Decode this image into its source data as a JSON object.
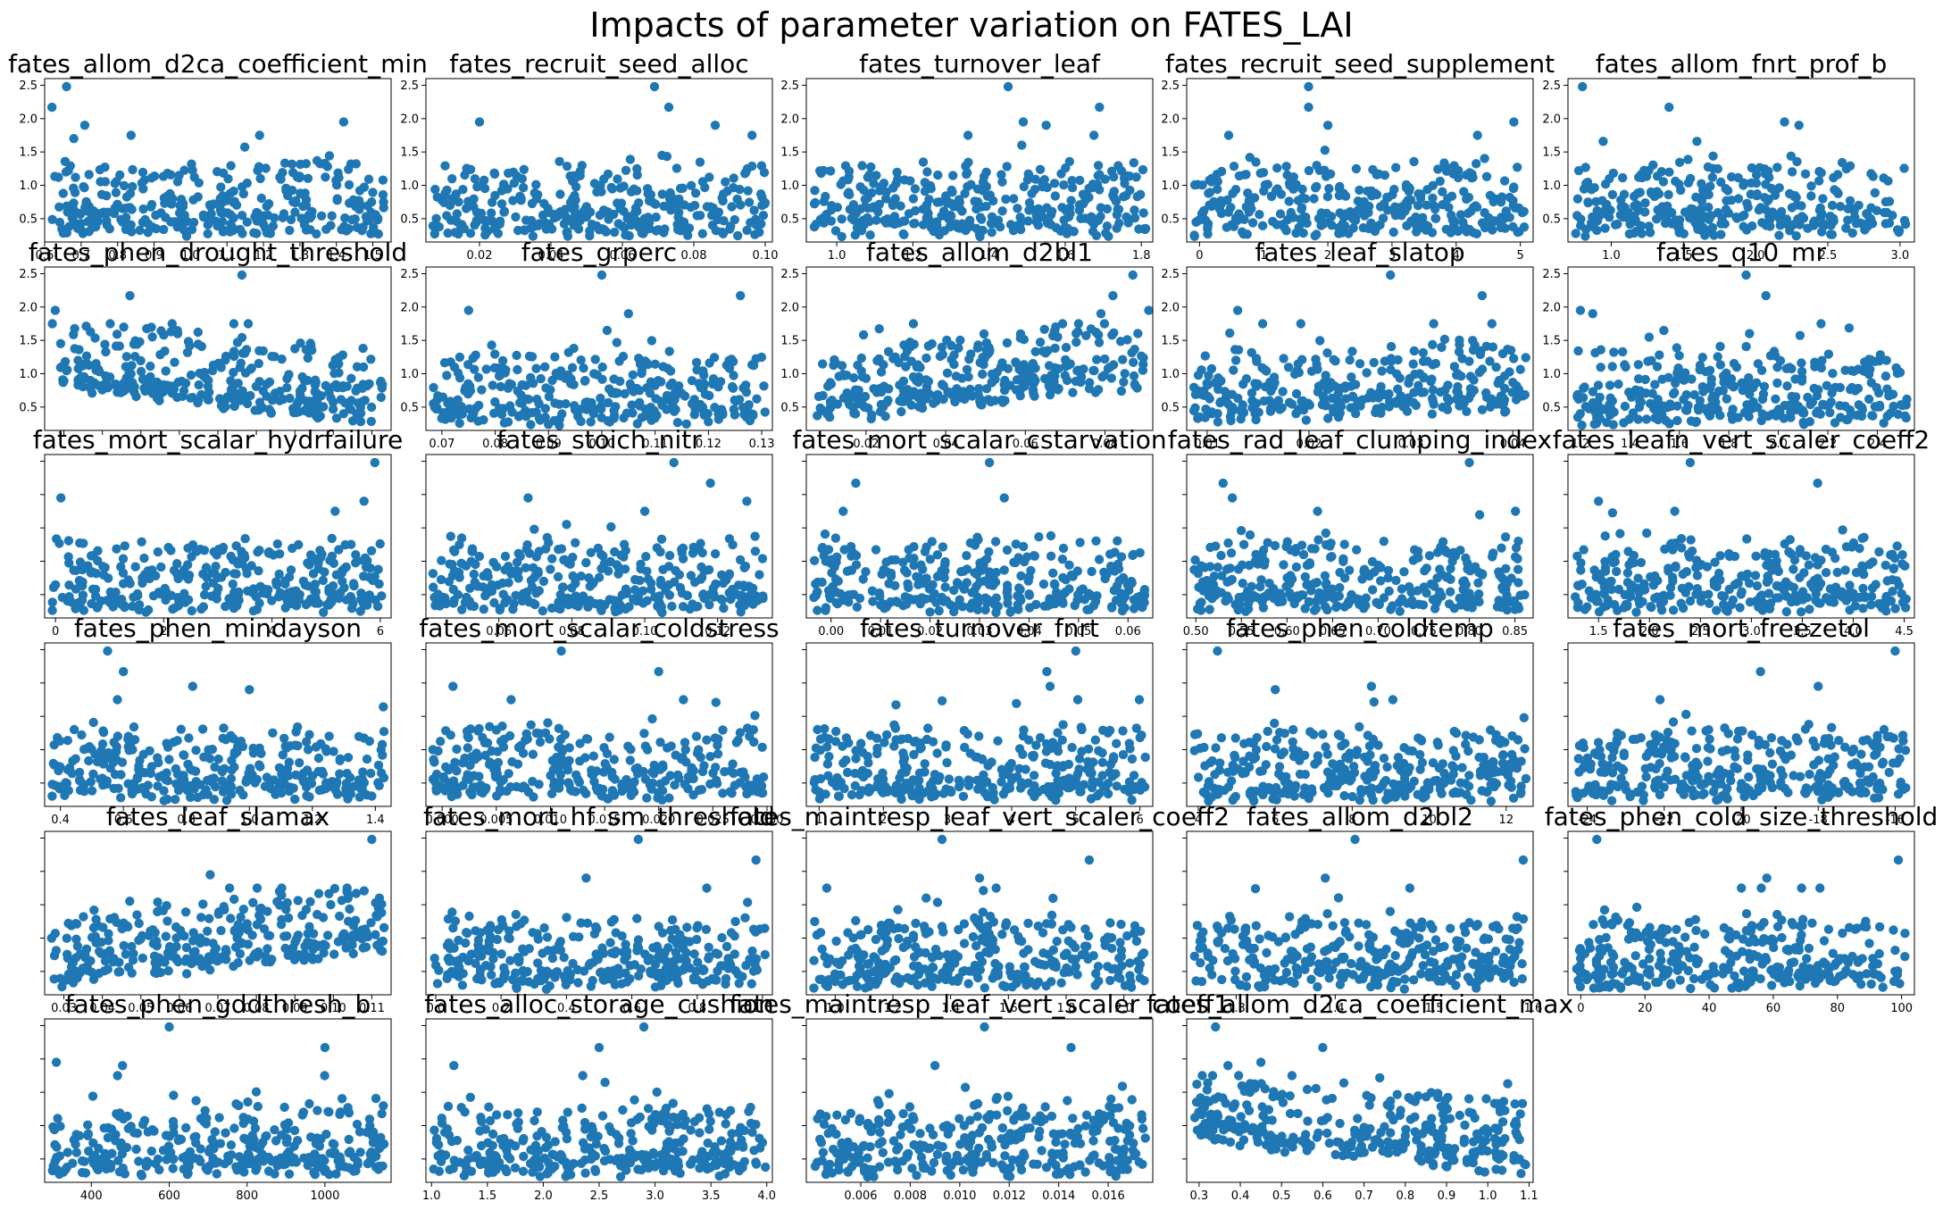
{
  "title": "Impacts of parameter variation on FATES_LAI",
  "marker_color": "#1f77b4",
  "chart_data": [
    {
      "type": "scatter",
      "title": "fates_allom_d2ca_coefficient_min",
      "xlim": [
        0.6,
        1.55
      ],
      "xticks": [
        "0.6",
        "0.7",
        "0.8",
        "0.9",
        "1.0",
        "1.1",
        "1.2",
        "1.3",
        "1.4",
        "1.5"
      ],
      "ylim": [
        0.15,
        2.6
      ],
      "yticks": [
        "0.5",
        "1.0",
        "1.5",
        "2.0",
        "2.5"
      ],
      "trend": "none",
      "highlights": [
        [
          0.62,
          2.17
        ],
        [
          0.66,
          2.48
        ],
        [
          0.68,
          1.7
        ],
        [
          0.71,
          1.9
        ],
        [
          1.42,
          1.95
        ]
      ]
    },
    {
      "type": "scatter",
      "title": "fates_recruit_seed_alloc",
      "xlim": [
        0.005,
        0.102
      ],
      "xticks": [
        "0.02",
        "0.04",
        "0.06",
        "0.08",
        "0.10"
      ],
      "ylim": [
        0.15,
        2.6
      ],
      "yticks": [
        "0.5",
        "1.0",
        "1.5",
        "2.0",
        "2.5"
      ],
      "trend": "none",
      "highlights": [
        [
          0.02,
          1.95
        ],
        [
          0.069,
          2.48
        ],
        [
          0.073,
          2.17
        ],
        [
          0.086,
          1.9
        ]
      ]
    },
    {
      "type": "scatter",
      "title": "fates_turnover_leaf",
      "xlim": [
        0.92,
        1.83
      ],
      "xticks": [
        "1.0",
        "1.2",
        "1.4",
        "1.6",
        "1.8"
      ],
      "ylim": [
        0.15,
        2.6
      ],
      "yticks": [
        "0.5",
        "1.0",
        "1.5",
        "2.0",
        "2.5"
      ],
      "trend": "none",
      "highlights": [
        [
          1.45,
          2.48
        ],
        [
          1.49,
          1.95
        ],
        [
          1.55,
          1.9
        ],
        [
          1.69,
          2.17
        ]
      ]
    },
    {
      "type": "scatter",
      "title": "fates_recruit_seed_supplement",
      "xlim": [
        -0.2,
        5.2
      ],
      "xticks": [
        "0",
        "1",
        "2",
        "3",
        "4",
        "5"
      ],
      "ylim": [
        0.15,
        2.6
      ],
      "yticks": [
        "0.5",
        "1.0",
        "1.5",
        "2.0",
        "2.5"
      ],
      "trend": "none",
      "highlights": [
        [
          1.7,
          2.48
        ],
        [
          1.7,
          2.17
        ],
        [
          4.9,
          1.95
        ],
        [
          2.0,
          1.9
        ]
      ]
    },
    {
      "type": "scatter",
      "title": "fates_allom_fnrt_prof_b",
      "xlim": [
        0.7,
        3.1
      ],
      "xticks": [
        "1.0",
        "1.5",
        "2.0",
        "2.5",
        "3.0"
      ],
      "ylim": [
        0.15,
        2.6
      ],
      "yticks": [
        "0.5",
        "1.0",
        "1.5",
        "2.0",
        "2.5"
      ],
      "trend": "none",
      "highlights": [
        [
          0.8,
          2.48
        ],
        [
          1.4,
          2.17
        ],
        [
          2.2,
          1.95
        ],
        [
          2.3,
          1.9
        ]
      ]
    },
    {
      "type": "scatter",
      "title": "fates_phen_drought_threshold",
      "xlim": [
        -3.7e-05,
        2.8e-05
      ],
      "xticks": [
        "",
        "",
        "",
        "",
        "",
        "",
        "",
        "",
        ""
      ],
      "ylim": [
        0.15,
        2.6
      ],
      "yticks": [
        "0.5",
        "1.0",
        "1.5",
        "2.0",
        "2.5"
      ],
      "trend": "down",
      "highlights": [
        [
          -3.5e-05,
          1.95
        ],
        [
          -2.1e-05,
          2.17
        ],
        [
          0.0,
          2.48
        ]
      ]
    },
    {
      "type": "scatter",
      "title": "fates_grperc",
      "xlim": [
        0.067,
        0.132
      ],
      "xticks": [
        "0.07",
        "0.08",
        "0.09",
        "0.10",
        "0.11",
        "0.12",
        "0.13"
      ],
      "ylim": [
        0.15,
        2.6
      ],
      "yticks": [
        "0.5",
        "1.0",
        "1.5",
        "2.0",
        "2.5"
      ],
      "trend": "none",
      "highlights": [
        [
          0.075,
          1.95
        ],
        [
          0.1,
          2.48
        ],
        [
          0.105,
          1.9
        ],
        [
          0.126,
          2.17
        ]
      ]
    },
    {
      "type": "scatter",
      "title": "fates_allom_d2bl1",
      "xlim": [
        0.005,
        0.092
      ],
      "xticks": [
        "0.02",
        "0.04",
        "0.06",
        "0.08"
      ],
      "ylim": [
        0.15,
        2.6
      ],
      "yticks": [
        "0.5",
        "1.0",
        "1.5",
        "2.0",
        "2.5"
      ],
      "trend": "up",
      "highlights": [
        [
          0.082,
          2.17
        ],
        [
          0.087,
          2.48
        ],
        [
          0.091,
          1.95
        ],
        [
          0.079,
          1.9
        ]
      ]
    },
    {
      "type": "scatter",
      "title": "fates_leaf_slatop",
      "xlim": [
        0.008,
        0.042
      ],
      "xticks": [
        "0.01",
        "0.02",
        "0.03",
        "0.04"
      ],
      "ylim": [
        0.15,
        2.6
      ],
      "yticks": [
        "0.5",
        "1.0",
        "1.5",
        "2.0",
        "2.5"
      ],
      "trend": "slight-up",
      "highlights": [
        [
          0.013,
          1.95
        ],
        [
          0.028,
          2.48
        ],
        [
          0.037,
          2.17
        ]
      ]
    },
    {
      "type": "scatter",
      "title": "fates_q10_mr",
      "xlim": [
        1.15,
        2.55
      ],
      "xticks": [
        "1.2",
        "1.4",
        "1.6",
        "1.8",
        "2.0",
        "2.2",
        "2.4"
      ],
      "ylim": [
        0.15,
        2.6
      ],
      "yticks": [
        "0.5",
        "1.0",
        "1.5",
        "2.0",
        "2.5"
      ],
      "trend": "none",
      "highlights": [
        [
          1.2,
          1.95
        ],
        [
          1.87,
          2.48
        ],
        [
          1.95,
          2.17
        ],
        [
          1.25,
          1.9
        ]
      ]
    },
    {
      "type": "scatter",
      "title": "fates_mort_scalar_hydrfailure",
      "xlim": [
        -0.2,
        6.2
      ],
      "xticks": [
        "0",
        "2",
        "4",
        "6"
      ],
      "ylim": [
        0.15,
        2.6
      ],
      "yticks": [],
      "trend": "none",
      "highlights": [
        [
          0.1,
          1.95
        ],
        [
          5.9,
          2.48
        ],
        [
          5.7,
          1.9
        ]
      ]
    },
    {
      "type": "scatter",
      "title": "fates_stoich_nitr",
      "xlim": [
        0.04,
        0.135
      ],
      "xticks": [
        "0.06",
        "0.08",
        "0.10",
        "0.12"
      ],
      "ylim": [
        0.15,
        2.6
      ],
      "yticks": [],
      "trend": "none",
      "highlights": [
        [
          0.108,
          2.48
        ],
        [
          0.118,
          2.17
        ],
        [
          0.128,
          1.9
        ],
        [
          0.068,
          1.95
        ]
      ]
    },
    {
      "type": "scatter",
      "title": "fates_mort_scalar_cstarvation",
      "xlim": [
        -0.005,
        0.065
      ],
      "xticks": [
        "0.00",
        "0.01",
        "0.02",
        "0.03",
        "0.04",
        "0.05",
        "0.06"
      ],
      "ylim": [
        0.15,
        2.6
      ],
      "yticks": [],
      "trend": "none",
      "highlights": [
        [
          0.032,
          2.48
        ],
        [
          0.005,
          2.17
        ],
        [
          0.035,
          1.95
        ]
      ]
    },
    {
      "type": "scatter",
      "title": "fates_rad_leaf_clumping_index",
      "xlim": [
        0.49,
        0.87
      ],
      "xticks": [
        "0.50",
        "0.55",
        "0.60",
        "0.65",
        "0.70",
        "0.75",
        "0.80",
        "0.85"
      ],
      "ylim": [
        0.15,
        2.6
      ],
      "yticks": [],
      "trend": "none",
      "highlights": [
        [
          0.53,
          2.17
        ],
        [
          0.8,
          2.48
        ],
        [
          0.54,
          1.95
        ]
      ]
    },
    {
      "type": "scatter",
      "title": "fates_leafn_vert_scaler_coeff2",
      "xlim": [
        1.2,
        4.6
      ],
      "xticks": [
        "1.5",
        "2.0",
        "2.5",
        "3.0",
        "3.5",
        "4.0",
        "4.5"
      ],
      "ylim": [
        0.15,
        2.6
      ],
      "yticks": [],
      "trend": "none",
      "highlights": [
        [
          2.4,
          2.48
        ],
        [
          3.65,
          2.17
        ],
        [
          1.5,
          1.9
        ]
      ]
    },
    {
      "type": "scatter",
      "title": "fates_phen_mindayson",
      "xlim": [
        0.35,
        1.45
      ],
      "xticks": [
        "0.4",
        "0.6",
        "0.8",
        "1.0",
        "1.2",
        "1.4"
      ],
      "ylim": [
        0.15,
        2.6
      ],
      "yticks": [],
      "trend": "none",
      "highlights": [
        [
          0.55,
          2.48
        ],
        [
          0.6,
          2.17
        ],
        [
          1.0,
          1.9
        ],
        [
          0.82,
          1.95
        ]
      ]
    },
    {
      "type": "scatter",
      "title": "fates_mort_scalar_coldstress",
      "xlim": [
        -0.0015,
        0.0305
      ],
      "xticks": [
        "0.000",
        "0.005",
        "0.010",
        "0.015",
        "0.020",
        "0.025",
        "0.030"
      ],
      "ylim": [
        0.15,
        2.6
      ],
      "yticks": [],
      "trend": "none",
      "highlights": [
        [
          0.001,
          1.95
        ],
        [
          0.011,
          2.48
        ],
        [
          0.02,
          2.17
        ]
      ]
    },
    {
      "type": "scatter",
      "title": "fates_turnover_fnrt",
      "xlim": [
        0.8,
        6.2
      ],
      "xticks": [
        "1",
        "2",
        "3",
        "4",
        "5",
        "6"
      ],
      "ylim": [
        0.15,
        2.6
      ],
      "yticks": [],
      "trend": "none",
      "highlights": [
        [
          4.55,
          2.17
        ],
        [
          5.0,
          2.48
        ],
        [
          4.6,
          1.95
        ]
      ]
    },
    {
      "type": "scatter",
      "title": "fates_phen_coldtemp",
      "xlim": [
        3.7,
        12.7
      ],
      "xticks": [
        "4",
        "6",
        "8",
        "10",
        "12"
      ],
      "ylim": [
        0.15,
        2.6
      ],
      "yticks": [],
      "trend": "none",
      "highlights": [
        [
          4.5,
          2.48
        ],
        [
          8.5,
          1.95
        ],
        [
          6.0,
          1.9
        ]
      ]
    },
    {
      "type": "scatter",
      "title": "fates_mort_freezetol",
      "xlim": [
        -24.5,
        -15.5
      ],
      "xticks": [
        "-24",
        "-22",
        "-20",
        "-18",
        "-16"
      ],
      "ylim": [
        0.15,
        2.6
      ],
      "yticks": [],
      "trend": "none",
      "highlights": [
        [
          -16.0,
          2.48
        ],
        [
          -19.5,
          2.17
        ],
        [
          -18.0,
          1.95
        ]
      ]
    },
    {
      "type": "scatter",
      "title": "fates_leaf_slamax",
      "xlim": [
        0.025,
        0.115
      ],
      "xticks": [
        "0.03",
        "0.04",
        "0.05",
        "0.06",
        "0.07",
        "0.08",
        "0.09",
        "0.10",
        "0.11"
      ],
      "ylim": [
        0.15,
        2.6
      ],
      "yticks": [],
      "trend": "up",
      "highlights": [
        [
          0.068,
          1.95
        ],
        [
          0.11,
          2.48
        ],
        [
          0.086,
          1.7
        ]
      ]
    },
    {
      "type": "scatter",
      "title": "fates_mort_hf_sm_threshold",
      "xlim": [
        -0.03,
        1.03
      ],
      "xticks": [
        "0.0",
        "0.2",
        "0.4",
        "0.6",
        "0.8",
        "1.0"
      ],
      "ylim": [
        0.15,
        2.6
      ],
      "yticks": [],
      "trend": "none",
      "highlights": [
        [
          0.62,
          2.48
        ],
        [
          0.98,
          2.17
        ],
        [
          0.46,
          1.9
        ]
      ]
    },
    {
      "type": "scatter",
      "title": "fates_maintresp_leaf_vert_scaler_coeff2",
      "xlim": [
        0.9,
        2.1
      ],
      "xticks": [
        "1.0",
        "1.2",
        "1.4",
        "1.6",
        "1.8",
        "2.0"
      ],
      "ylim": [
        0.15,
        2.6
      ],
      "yticks": [],
      "trend": "none",
      "highlights": [
        [
          1.37,
          2.48
        ],
        [
          1.88,
          2.17
        ],
        [
          1.5,
          1.9
        ]
      ]
    },
    {
      "type": "scatter",
      "title": "fates_allom_d2bl2",
      "xlim": [
        1.25,
        1.6
      ],
      "xticks": [
        "1.3",
        "1.4",
        "1.5",
        "1.6"
      ],
      "ylim": [
        0.15,
        2.6
      ],
      "yticks": [],
      "trend": "none",
      "highlights": [
        [
          1.42,
          2.48
        ],
        [
          1.59,
          2.17
        ],
        [
          1.39,
          1.9
        ]
      ]
    },
    {
      "type": "scatter",
      "title": "fates_phen_cold_size_threshold",
      "xlim": [
        -4,
        104
      ],
      "xticks": [
        "0",
        "20",
        "40",
        "60",
        "80",
        "100"
      ],
      "ylim": [
        0.15,
        2.6
      ],
      "yticks": [],
      "trend": "none",
      "highlights": [
        [
          5,
          2.48
        ],
        [
          99,
          2.17
        ],
        [
          58,
          1.9
        ]
      ]
    },
    {
      "type": "scatter",
      "title": "fates_phen_gddthresh_b",
      "xlim": [
        280,
        1170
      ],
      "xticks": [
        "400",
        "600",
        "800",
        "1000"
      ],
      "ylim": [
        0.15,
        2.6
      ],
      "yticks": [],
      "trend": "none",
      "highlights": [
        [
          310,
          1.95
        ],
        [
          600,
          2.48
        ],
        [
          1000,
          2.17
        ],
        [
          480,
          1.9
        ]
      ]
    },
    {
      "type": "scatter",
      "title": "fates_alloc_storage_cushion",
      "xlim": [
        0.95,
        4.05
      ],
      "xticks": [
        "1.0",
        "1.5",
        "2.0",
        "2.5",
        "3.0",
        "3.5",
        "4.0"
      ],
      "ylim": [
        0.15,
        2.6
      ],
      "yticks": [],
      "trend": "none",
      "highlights": [
        [
          2.5,
          2.17
        ],
        [
          2.9,
          2.48
        ],
        [
          1.2,
          1.9
        ]
      ]
    },
    {
      "type": "scatter",
      "title": "fates_maintresp_leaf_vert_scaler_coeff1",
      "xlim": [
        0.0038,
        0.0178
      ],
      "xticks": [
        "0.006",
        "0.008",
        "0.010",
        "0.012",
        "0.014",
        "0.016"
      ],
      "ylim": [
        0.15,
        2.6
      ],
      "yticks": [],
      "trend": "none",
      "highlights": [
        [
          0.011,
          2.48
        ],
        [
          0.0145,
          2.17
        ],
        [
          0.009,
          1.9
        ]
      ]
    },
    {
      "type": "scatter",
      "title": "fates_allom_d2ca_coefficient_max",
      "xlim": [
        0.27,
        1.11
      ],
      "xticks": [
        "0.3",
        "0.4",
        "0.5",
        "0.6",
        "0.7",
        "0.8",
        "0.9",
        "1.0",
        "1.1"
      ],
      "ylim": [
        0.15,
        2.6
      ],
      "yticks": [],
      "trend": "down",
      "highlights": [
        [
          0.34,
          2.48
        ],
        [
          0.6,
          2.17
        ],
        [
          0.37,
          1.9
        ],
        [
          0.45,
          1.95
        ]
      ]
    }
  ]
}
